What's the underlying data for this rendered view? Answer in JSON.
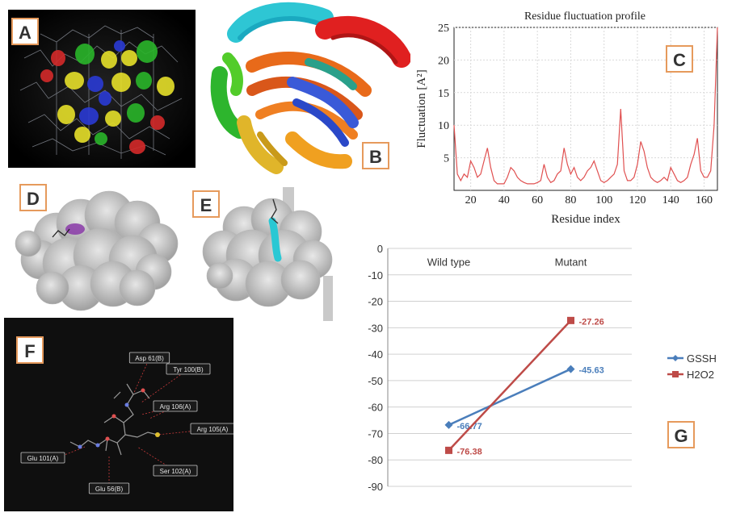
{
  "panel_labels": {
    "a": "A",
    "b": "B",
    "c": "C",
    "d": "D",
    "e": "E",
    "f": "F",
    "g": "G"
  },
  "panel_c": {
    "chart_data": {
      "type": "line",
      "title": "Residue fluctuation profile",
      "xlabel": "Residue index",
      "ylabel": "Fluctuation [A²]",
      "xlim": [
        10,
        168
      ],
      "ylim": [
        0,
        25
      ],
      "xticks": [
        20,
        40,
        60,
        80,
        100,
        120,
        140,
        160
      ],
      "yticks": [
        5,
        10,
        15,
        20,
        25
      ],
      "grid": true,
      "color": "#e05050",
      "x": [
        10,
        12,
        14,
        16,
        18,
        20,
        22,
        24,
        26,
        28,
        30,
        32,
        34,
        36,
        38,
        40,
        42,
        44,
        46,
        48,
        50,
        52,
        54,
        56,
        58,
        60,
        62,
        64,
        66,
        68,
        70,
        72,
        74,
        76,
        78,
        80,
        82,
        84,
        86,
        88,
        90,
        92,
        94,
        96,
        98,
        100,
        102,
        104,
        106,
        108,
        110,
        112,
        114,
        116,
        118,
        120,
        122,
        124,
        126,
        128,
        130,
        132,
        134,
        136,
        138,
        140,
        142,
        144,
        146,
        148,
        150,
        152,
        154,
        156,
        158,
        160,
        162,
        164,
        166,
        168
      ],
      "y": [
        10,
        2.5,
        1.5,
        2.5,
        2,
        4.5,
        3.5,
        2,
        2.5,
        4.5,
        6.5,
        3.5,
        1.5,
        1,
        1,
        1,
        2,
        3.5,
        3,
        2,
        1.5,
        1.2,
        1,
        1,
        1,
        1.2,
        1.5,
        4,
        2,
        1.2,
        1.5,
        2.5,
        3,
        6.5,
        4,
        2.5,
        3.5,
        2,
        1.5,
        2,
        3,
        3.5,
        4.5,
        3,
        1.5,
        1.2,
        1.5,
        2,
        2.5,
        4,
        12.5,
        3,
        1.5,
        1.5,
        2,
        4,
        7.5,
        6,
        3.5,
        2,
        1.5,
        1.2,
        1.5,
        2,
        1.5,
        3.5,
        2.5,
        1.5,
        1.2,
        1.5,
        2,
        4,
        5.5,
        8,
        3,
        2,
        2,
        3,
        10,
        25
      ]
    }
  },
  "panel_f": {
    "residues": [
      "Asp 61(B)",
      "Tyr 100(B)",
      "Arg 106(A)",
      "Arg 105(A)",
      "Ser 102(A)",
      "Glu 101(A)",
      "Glu 56(B)"
    ]
  },
  "panel_g": {
    "chart_data": {
      "type": "line",
      "categories": [
        "Wild type",
        "Mutant"
      ],
      "ylim": [
        -90,
        0
      ],
      "yticks": [
        0,
        -10,
        -20,
        -30,
        -40,
        -50,
        -60,
        -70,
        -80,
        -90
      ],
      "grid": true,
      "legend_position": "right",
      "series": [
        {
          "name": "GSSH",
          "values": [
            -66.77,
            -45.63
          ],
          "labels": [
            "-66.77",
            "-45.63"
          ],
          "color": "#4a7ebb"
        },
        {
          "name": "H2O2",
          "values": [
            -76.38,
            -27.26
          ],
          "labels": [
            "-76.38",
            "-27.26"
          ],
          "color": "#be4b48"
        }
      ]
    }
  }
}
